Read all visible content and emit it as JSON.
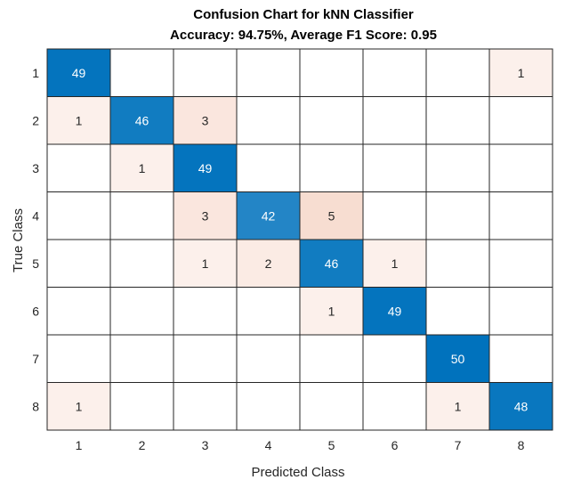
{
  "chart_data": {
    "type": "heatmap",
    "title": "Confusion Chart for kNN Classifier",
    "subtitle": "Accuracy: 94.75%, Average F1 Score: 0.95",
    "xlabel": "Predicted Class",
    "ylabel": "True Class",
    "x_categories": [
      "1",
      "2",
      "3",
      "4",
      "5",
      "6",
      "7",
      "8"
    ],
    "y_categories": [
      "1",
      "2",
      "3",
      "4",
      "5",
      "6",
      "7",
      "8"
    ],
    "matrix": [
      [
        49,
        0,
        0,
        0,
        0,
        0,
        0,
        1
      ],
      [
        1,
        46,
        3,
        0,
        0,
        0,
        0,
        0
      ],
      [
        0,
        1,
        49,
        0,
        0,
        0,
        0,
        0
      ],
      [
        0,
        0,
        3,
        42,
        5,
        0,
        0,
        0
      ],
      [
        0,
        0,
        1,
        2,
        46,
        1,
        0,
        0
      ],
      [
        0,
        0,
        0,
        0,
        1,
        49,
        0,
        0
      ],
      [
        0,
        0,
        0,
        0,
        0,
        0,
        50,
        0
      ],
      [
        1,
        0,
        0,
        0,
        0,
        0,
        1,
        48
      ]
    ],
    "colors": {
      "diagonal_max": "#0072bd",
      "offdiag_max": "#d95319",
      "zero": "#ffffff",
      "grid": "#262626"
    }
  }
}
